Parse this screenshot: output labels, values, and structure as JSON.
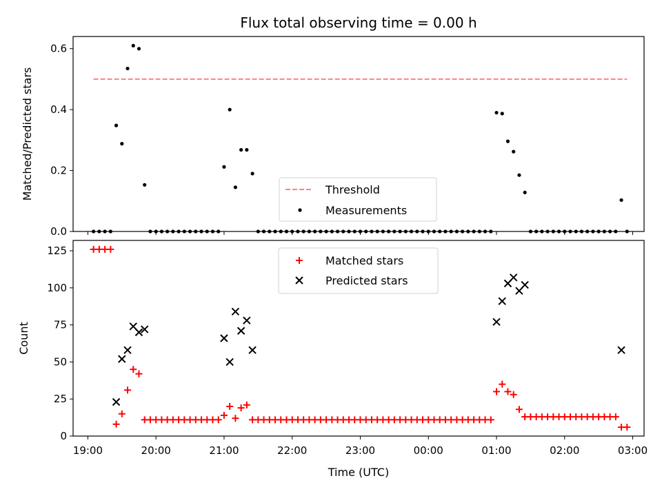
{
  "title": "Flux total observing time = 0.00 h",
  "xlabel": "Time (UTC)",
  "chart_data": [
    {
      "type": "scatter",
      "ylabel": "Matched/Predicted stars",
      "xlim": [
        "18:47",
        "03:10"
      ],
      "ylim": [
        0,
        0.64
      ],
      "yticks": [
        "0.0",
        "0.2",
        "0.4",
        "0.6"
      ],
      "legend": "lower-center",
      "threshold": {
        "name": "Threshold",
        "value": 0.5,
        "x_start": "19:05",
        "x_end": "02:55",
        "color": "#ff8080"
      },
      "measurements": {
        "name": "Measurements",
        "color": "#000000",
        "x": [
          "19:05",
          "19:10",
          "19:15",
          "19:20",
          "19:25",
          "19:30",
          "19:35",
          "19:40",
          "19:45",
          "19:50",
          "19:55",
          "20:00",
          "20:05",
          "20:10",
          "20:15",
          "20:20",
          "20:25",
          "20:30",
          "20:35",
          "20:40",
          "20:45",
          "20:50",
          "20:55",
          "21:00",
          "21:05",
          "21:10",
          "21:15",
          "21:20",
          "21:25",
          "21:30",
          "21:35",
          "21:40",
          "21:45",
          "21:50",
          "21:55",
          "22:00",
          "22:05",
          "22:10",
          "22:15",
          "22:20",
          "22:25",
          "22:30",
          "22:35",
          "22:40",
          "22:45",
          "22:50",
          "22:55",
          "23:00",
          "23:05",
          "23:10",
          "23:15",
          "23:20",
          "23:25",
          "23:30",
          "23:35",
          "23:40",
          "23:45",
          "23:50",
          "23:55",
          "00:00",
          "00:05",
          "00:10",
          "00:15",
          "00:20",
          "00:25",
          "00:30",
          "00:35",
          "00:40",
          "00:45",
          "00:50",
          "00:55",
          "01:00",
          "01:05",
          "01:10",
          "01:15",
          "01:20",
          "01:25",
          "01:30",
          "01:35",
          "01:40",
          "01:45",
          "01:50",
          "01:55",
          "02:00",
          "02:05",
          "02:10",
          "02:15",
          "02:20",
          "02:25",
          "02:30",
          "02:35",
          "02:40",
          "02:45",
          "02:50",
          "02:55"
        ],
        "y": [
          0,
          0,
          0,
          0,
          0.348,
          0.288,
          0.535,
          0.61,
          0.6,
          0.153,
          0,
          0,
          0,
          0,
          0,
          0,
          0,
          0,
          0,
          0,
          0,
          0,
          0,
          0.212,
          0.4,
          0.145,
          0.268,
          0.268,
          0.19,
          0,
          0,
          0,
          0,
          0,
          0,
          0,
          0,
          0,
          0,
          0,
          0,
          0,
          0,
          0,
          0,
          0,
          0,
          0,
          0,
          0,
          0,
          0,
          0,
          0,
          0,
          0,
          0,
          0,
          0,
          0,
          0,
          0,
          0,
          0,
          0,
          0,
          0,
          0,
          0,
          0,
          0,
          0.39,
          0.387,
          0.296,
          0.262,
          0.185,
          0.128,
          0,
          0,
          0,
          0,
          0,
          0,
          0,
          0,
          0,
          0,
          0,
          0,
          0,
          0,
          0,
          0,
          0.103,
          0
        ]
      }
    },
    {
      "type": "scatter",
      "ylabel": "Count",
      "xlim": [
        "18:47",
        "03:10"
      ],
      "ylim": [
        0,
        132
      ],
      "yticks": [
        "0",
        "25",
        "50",
        "75",
        "100",
        "125"
      ],
      "xticks": [
        "19:00",
        "20:00",
        "21:00",
        "22:00",
        "23:00",
        "00:00",
        "01:00",
        "02:00",
        "03:00"
      ],
      "legend": "upper-center",
      "matched": {
        "name": "Matched stars",
        "color": "#ff0000",
        "x": [
          "19:05",
          "19:10",
          "19:15",
          "19:20",
          "19:25",
          "19:30",
          "19:35",
          "19:40",
          "19:45",
          "19:50",
          "19:55",
          "20:00",
          "20:05",
          "20:10",
          "20:15",
          "20:20",
          "20:25",
          "20:30",
          "20:35",
          "20:40",
          "20:45",
          "20:50",
          "20:55",
          "21:00",
          "21:05",
          "21:10",
          "21:15",
          "21:20",
          "21:25",
          "21:30",
          "21:35",
          "21:40",
          "21:45",
          "21:50",
          "21:55",
          "22:00",
          "22:05",
          "22:10",
          "22:15",
          "22:20",
          "22:25",
          "22:30",
          "22:35",
          "22:40",
          "22:45",
          "22:50",
          "22:55",
          "23:00",
          "23:05",
          "23:10",
          "23:15",
          "23:20",
          "23:25",
          "23:30",
          "23:35",
          "23:40",
          "23:45",
          "23:50",
          "23:55",
          "00:00",
          "00:05",
          "00:10",
          "00:15",
          "00:20",
          "00:25",
          "00:30",
          "00:35",
          "00:40",
          "00:45",
          "00:50",
          "00:55",
          "01:00",
          "01:05",
          "01:10",
          "01:15",
          "01:20",
          "01:25",
          "01:30",
          "01:35",
          "01:40",
          "01:45",
          "01:50",
          "01:55",
          "02:00",
          "02:05",
          "02:10",
          "02:15",
          "02:20",
          "02:25",
          "02:30",
          "02:35",
          "02:40",
          "02:45",
          "02:50",
          "02:55"
        ],
        "y": [
          126,
          126,
          126,
          126,
          8,
          15,
          31,
          45,
          42,
          11,
          11,
          11,
          11,
          11,
          11,
          11,
          11,
          11,
          11,
          11,
          11,
          11,
          11,
          14,
          20,
          12,
          19,
          21,
          11,
          11,
          11,
          11,
          11,
          11,
          11,
          11,
          11,
          11,
          11,
          11,
          11,
          11,
          11,
          11,
          11,
          11,
          11,
          11,
          11,
          11,
          11,
          11,
          11,
          11,
          11,
          11,
          11,
          11,
          11,
          11,
          11,
          11,
          11,
          11,
          11,
          11,
          11,
          11,
          11,
          11,
          11,
          30,
          35,
          30,
          28,
          18,
          13,
          13,
          13,
          13,
          13,
          13,
          13,
          13,
          13,
          13,
          13,
          13,
          13,
          13,
          13,
          13,
          13,
          6,
          6
        ]
      },
      "predicted": {
        "name": "Predicted stars",
        "color": "#000000",
        "x": [
          "19:25",
          "19:30",
          "19:35",
          "19:40",
          "19:45",
          "19:50",
          "21:00",
          "21:05",
          "21:10",
          "21:15",
          "21:20",
          "21:25",
          "01:00",
          "01:05",
          "01:10",
          "01:15",
          "01:20",
          "01:25",
          "02:50"
        ],
        "y": [
          23,
          52,
          58,
          74,
          70,
          72,
          66,
          50,
          84,
          71,
          78,
          58,
          77,
          91,
          103,
          107,
          98,
          102,
          58
        ]
      }
    }
  ]
}
